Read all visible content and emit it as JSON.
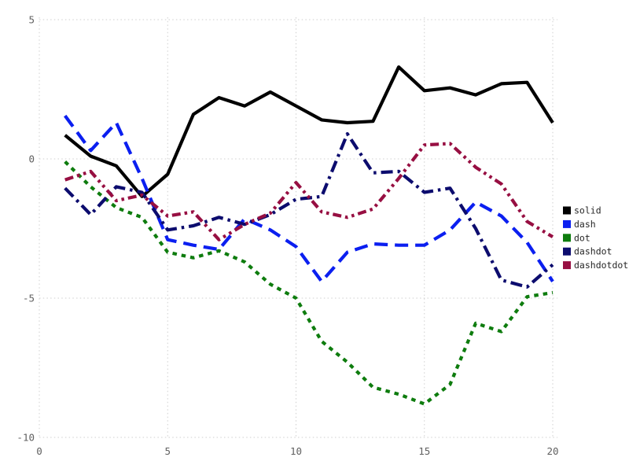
{
  "chart_data": {
    "type": "line",
    "title": "",
    "xlabel": "",
    "ylabel": "",
    "x": [
      1,
      2,
      3,
      4,
      5,
      6,
      7,
      8,
      9,
      10,
      11,
      12,
      13,
      14,
      15,
      16,
      17,
      18,
      19,
      20
    ],
    "series": [
      {
        "name": "solid",
        "legend_label": "solid",
        "color": "#000000",
        "linestyle": "solid",
        "values": [
          0.85,
          0.1,
          -0.25,
          -1.35,
          -0.55,
          1.6,
          2.2,
          1.9,
          2.4,
          1.9,
          1.4,
          1.3,
          1.35,
          3.3,
          2.45,
          2.55,
          2.3,
          2.7,
          2.75,
          1.3
        ]
      },
      {
        "name": "dash",
        "legend_label": "dash",
        "color": "#0b1ff0",
        "linestyle": "dash",
        "values": [
          1.55,
          0.3,
          1.3,
          -0.7,
          -2.9,
          -3.1,
          -3.25,
          -2.15,
          -2.55,
          -3.15,
          -4.4,
          -3.35,
          -3.05,
          -3.1,
          -3.1,
          -2.55,
          -1.55,
          -2.05,
          -3.0,
          -4.4
        ]
      },
      {
        "name": "dot",
        "legend_label": "dot",
        "color": "#0e7c0e",
        "linestyle": "dot",
        "values": [
          -0.1,
          -1.0,
          -1.75,
          -2.1,
          -3.35,
          -3.55,
          -3.3,
          -3.7,
          -4.5,
          -5.0,
          -6.55,
          -7.3,
          -8.2,
          -8.45,
          -8.8,
          -8.1,
          -5.9,
          -6.2,
          -4.95,
          -4.8
        ]
      },
      {
        "name": "dashdot",
        "legend_label": "dashdot",
        "color": "#0c0c6e",
        "linestyle": "dashdot",
        "values": [
          -1.05,
          -2.0,
          -1.0,
          -1.2,
          -2.55,
          -2.4,
          -2.1,
          -2.35,
          -2.0,
          -1.45,
          -1.35,
          0.9,
          -0.5,
          -0.45,
          -1.2,
          -1.05,
          -2.5,
          -4.35,
          -4.6,
          -3.8
        ]
      },
      {
        "name": "dashdotdot",
        "legend_label": "dashdotdot",
        "color": "#970f42",
        "linestyle": "dashdotdot",
        "values": [
          -0.75,
          -0.45,
          -1.5,
          -1.3,
          -2.05,
          -1.9,
          -2.9,
          -2.35,
          -1.95,
          -0.85,
          -1.9,
          -2.1,
          -1.8,
          -0.7,
          0.5,
          0.55,
          -0.3,
          -0.9,
          -2.25,
          -2.8
        ]
      }
    ],
    "xlim": [
      0,
      20.6
    ],
    "ylim": [
      -10.5,
      5.6
    ],
    "x_ticks": [
      "0",
      "5",
      "10",
      "15",
      "20"
    ],
    "y_ticks": [
      "5",
      "0",
      "-5",
      "-10"
    ],
    "grid": true,
    "legend_position": "right-outside",
    "legend_labels": [
      "solid",
      "dash",
      "dot",
      "dashdot",
      "dashdotdot"
    ]
  },
  "style": {
    "background": "#ffffff",
    "grid_color": "#cfcfcf",
    "tick_label_color": "#606060",
    "legend_text_color": "#262626"
  }
}
